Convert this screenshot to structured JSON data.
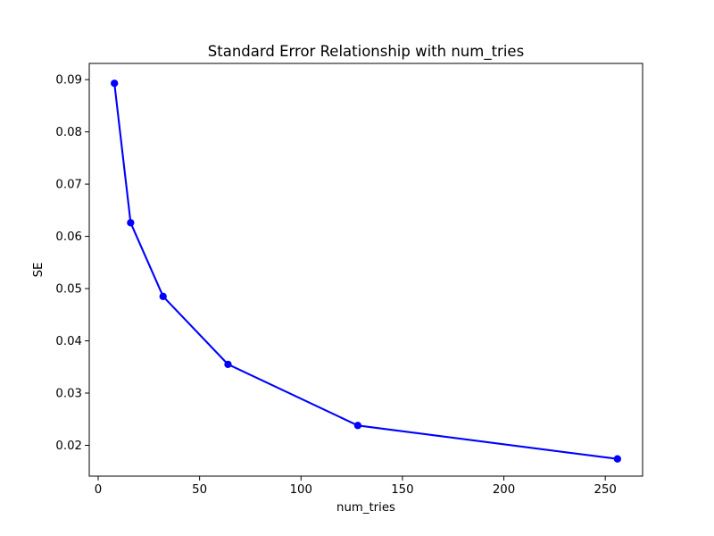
{
  "chart_data": {
    "type": "line",
    "title": "Standard Error Relationship with num_tries",
    "xlabel": "num_tries",
    "ylabel": "SE",
    "x": [
      8,
      16,
      32,
      64,
      128,
      256
    ],
    "y": [
      0.0893,
      0.0626,
      0.0485,
      0.0355,
      0.0238,
      0.0174
    ],
    "xlim": [
      -4.4,
      268.4
    ],
    "ylim": [
      0.0141,
      0.0931
    ],
    "xticks": [
      0,
      50,
      100,
      150,
      200,
      250
    ],
    "xtick_labels": [
      "0",
      "50",
      "100",
      "150",
      "200",
      "250"
    ],
    "yticks": [
      0.02,
      0.03,
      0.04,
      0.05,
      0.06,
      0.07,
      0.08,
      0.09
    ],
    "ytick_labels": [
      "0.02",
      "0.03",
      "0.04",
      "0.05",
      "0.06",
      "0.07",
      "0.08",
      "0.09"
    ],
    "grid": false,
    "legend": "none",
    "line_color": "#0000ff",
    "marker": "o",
    "marker_size_px": 8.3,
    "background": "#ffffff",
    "axes_color": "#000000"
  }
}
